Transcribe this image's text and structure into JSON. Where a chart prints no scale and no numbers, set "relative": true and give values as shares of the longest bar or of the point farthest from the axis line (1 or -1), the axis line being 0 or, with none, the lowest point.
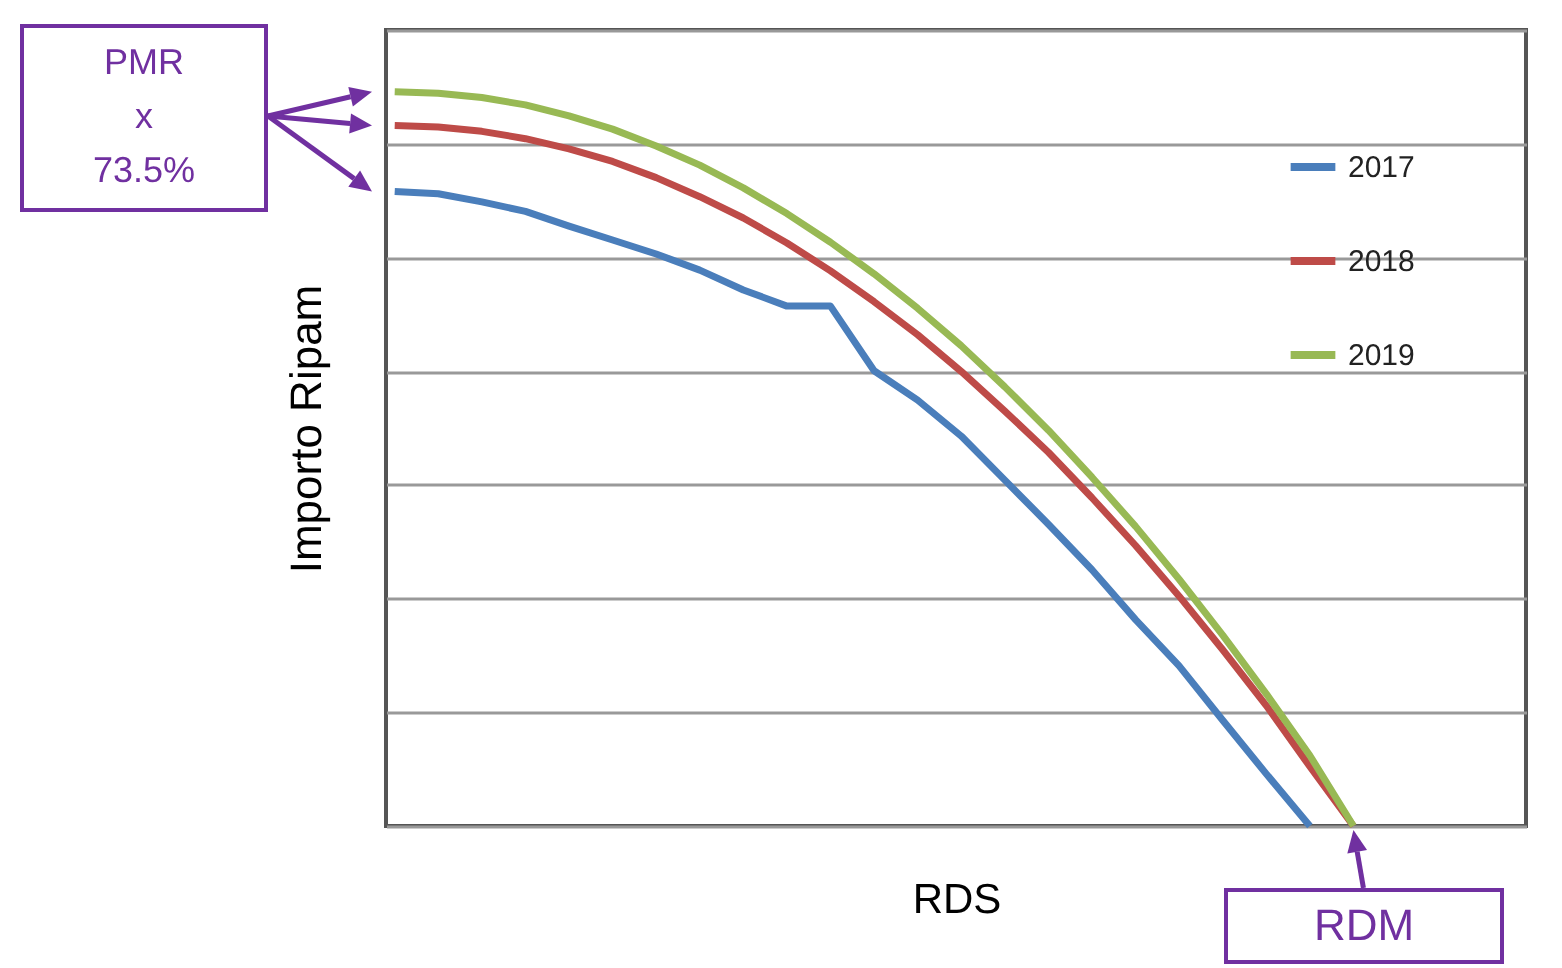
{
  "chart_data": {
    "type": "line",
    "relative": true,
    "xlabel": "RDS",
    "ylabel": "Importo Ripam",
    "grid": "y",
    "legend": "top right",
    "line_style": "solid",
    "marker": "none",
    "categories": [
      null,
      null,
      null,
      null,
      null,
      null,
      null,
      null,
      null,
      null,
      null,
      null,
      null,
      null,
      null,
      null,
      null,
      null,
      null,
      null,
      null,
      null,
      null
    ],
    "series": [
      {
        "name": "2017",
        "color": "#4a7ebb",
        "values": [
          0.864,
          0.861,
          0.85,
          0.837,
          0.817,
          0.798,
          0.779,
          0.757,
          0.73,
          0.708,
          0.708,
          0.62,
          0.58,
          0.531,
          0.471,
          0.411,
          0.349,
          0.281,
          0.218,
          0.144,
          0.071,
          0,
          null
        ]
      },
      {
        "name": "2018",
        "color": "#be4b48",
        "values": [
          0.954,
          0.952,
          0.946,
          0.936,
          0.922,
          0.905,
          0.883,
          0.857,
          0.828,
          0.794,
          0.756,
          0.714,
          0.669,
          0.619,
          0.565,
          0.509,
          0.447,
          0.382,
          0.313,
          0.24,
          0.164,
          0.081,
          0
        ]
      },
      {
        "name": "2019",
        "color": "#98b954",
        "values": [
          1,
          0.998,
          0.992,
          0.982,
          0.967,
          0.949,
          0.926,
          0.9,
          0.869,
          0.834,
          0.795,
          0.752,
          0.705,
          0.654,
          0.598,
          0.539,
          0.475,
          0.408,
          0.336,
          0.26,
          0.18,
          0.096,
          0
        ]
      }
    ],
    "annotations": [
      "PMR\nx\n73.5%",
      "RDM"
    ]
  }
}
